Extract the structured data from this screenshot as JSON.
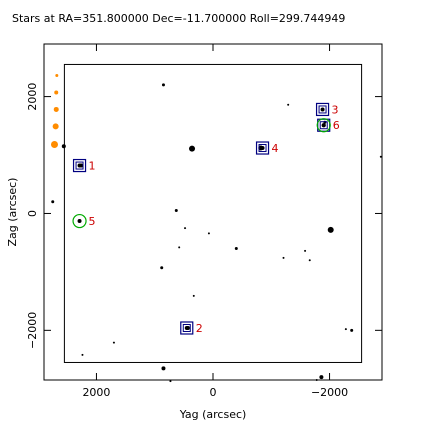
{
  "chart_data": {
    "type": "scatter",
    "title": "Stars at RA=351.800000 Dec=-11.700000 Roll=299.744949",
    "xlabel": "Yag (arcsec)",
    "ylabel": "Zag (arcsec)",
    "xlim": [
      2900,
      -2900
    ],
    "ylim": [
      -2850,
      2900
    ],
    "x_ticks": [
      2000,
      0,
      -2000
    ],
    "y_ticks": [
      2000,
      0,
      -2000
    ],
    "x_tick_labels": [
      "2000",
      "0",
      "−2000"
    ],
    "y_tick_labels": [
      "2000",
      "0",
      "−2000"
    ],
    "grid": false,
    "fov_box": {
      "y_min": -2550,
      "y_max": 2550,
      "z_min": -2550,
      "z_max": 2550
    },
    "stars": [
      {
        "y": -1290,
        "z": 1860,
        "size": 1
      },
      {
        "y": -1920,
        "z": 1560,
        "size": 1.5
      },
      {
        "y": 850,
        "z": 2200,
        "size": 1.5
      },
      {
        "y": 2260,
        "z": 820,
        "size": 2
      },
      {
        "y": 2560,
        "z": 1150,
        "size": 2
      },
      {
        "y": 2750,
        "z": 200,
        "size": 1.5
      },
      {
        "y": -2880,
        "z": 970,
        "size": 1
      },
      {
        "y": 360,
        "z": 1110,
        "size": 3
      },
      {
        "y": -820,
        "z": 1120,
        "size": 2.5
      },
      {
        "y": -2020,
        "z": -280,
        "size": 3
      },
      {
        "y": 630,
        "z": 50,
        "size": 1.5
      },
      {
        "y": 480,
        "z": -250,
        "size": 1
      },
      {
        "y": 70,
        "z": -340,
        "size": 1
      },
      {
        "y": -400,
        "z": -600,
        "size": 1.5
      },
      {
        "y": 580,
        "z": -580,
        "size": 1
      },
      {
        "y": -1210,
        "z": -760,
        "size": 1
      },
      {
        "y": -1580,
        "z": -640,
        "size": 1
      },
      {
        "y": -1660,
        "z": -800,
        "size": 1
      },
      {
        "y": 880,
        "z": -930,
        "size": 1.5
      },
      {
        "y": 330,
        "z": -1410,
        "size": 1
      },
      {
        "y": 430,
        "z": -1960,
        "size": 2
      },
      {
        "y": -2280,
        "z": -1980,
        "size": 1
      },
      {
        "y": -2380,
        "z": -2000,
        "size": 1.5
      },
      {
        "y": 1700,
        "z": -2210,
        "size": 1
      },
      {
        "y": 2240,
        "z": -2420,
        "size": 1
      },
      {
        "y": 850,
        "z": -2650,
        "size": 2
      },
      {
        "y": 730,
        "z": -2870,
        "size": 1
      },
      {
        "y": -1860,
        "z": -2800,
        "size": 2
      },
      {
        "y": -1780,
        "z": -2850,
        "size": 1
      }
    ],
    "acquisition_stars": [
      {
        "label": "1",
        "y": 2290,
        "z": 820
      },
      {
        "label": "2",
        "y": 450,
        "z": -1960
      },
      {
        "label": "3",
        "y": -1880,
        "z": 1780
      },
      {
        "label": "4",
        "y": -850,
        "z": 1120
      },
      {
        "label": "6",
        "y": -1900,
        "z": 1510
      }
    ],
    "guide_stars": [
      {
        "label": "5",
        "y": 2290,
        "z": -130
      },
      {
        "label": "6",
        "y": -1900,
        "z": 1510
      }
    ],
    "bad_stars": [
      {
        "y": 2680,
        "z": 2360,
        "size": 1.5
      },
      {
        "y": 2690,
        "z": 2070,
        "size": 2
      },
      {
        "y": 2690,
        "z": 1780,
        "size": 2.5
      },
      {
        "y": 2700,
        "z": 1490,
        "size": 3
      },
      {
        "y": 2720,
        "z": 1180,
        "size": 3.5
      }
    ],
    "colors": {
      "axes": "#000000",
      "star": "#000000",
      "acq_box": "#000080",
      "guide_circle": "#00aa00",
      "label": "#cc0000",
      "bad_star": "#ff8c00"
    }
  }
}
